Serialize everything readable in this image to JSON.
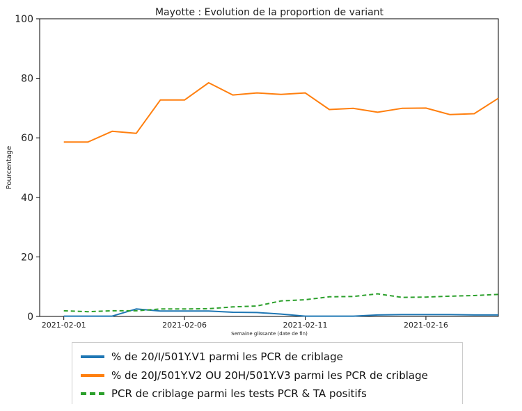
{
  "chart_data": {
    "type": "line",
    "title": "Mayotte : Evolution de la proportion de variant",
    "xlabel": "Semaine glissante (date de fin)",
    "ylabel": "Pourcentage",
    "ylim": [
      0,
      100
    ],
    "xlim": [
      "2021-01-31",
      "2021-02-19"
    ],
    "x_ticks": [
      "2021-02-01",
      "2021-02-06",
      "2021-02-11",
      "2021-02-16"
    ],
    "y_ticks": [
      0,
      20,
      40,
      60,
      80,
      100
    ],
    "grid": false,
    "legend_placement": "bottom",
    "x": [
      "2021-02-01",
      "2021-02-02",
      "2021-02-03",
      "2021-02-04",
      "2021-02-05",
      "2021-02-06",
      "2021-02-07",
      "2021-02-08",
      "2021-02-09",
      "2021-02-10",
      "2021-02-11",
      "2021-02-12",
      "2021-02-13",
      "2021-02-14",
      "2021-02-15",
      "2021-02-16",
      "2021-02-17",
      "2021-02-18",
      "2021-02-19"
    ],
    "series": [
      {
        "name": "% de 20/I/501Y.V1 parmi les PCR de criblage",
        "color": "#1f77b4",
        "style": "solid",
        "values": [
          0.1,
          0.1,
          0.1,
          2.5,
          1.8,
          1.8,
          1.8,
          1.4,
          1.3,
          0.8,
          0.1,
          0.1,
          0.1,
          0.5,
          0.6,
          0.6,
          0.6,
          0.5,
          0.5
        ]
      },
      {
        "name": "% de 20J/501Y.V2 OU 20H/501Y.V3 parmi les PCR de criblage",
        "color": "#ff7f0e",
        "style": "solid",
        "values": [
          58.6,
          58.6,
          62.2,
          61.5,
          72.7,
          72.7,
          78.5,
          74.4,
          75.1,
          74.6,
          75.1,
          69.5,
          69.9,
          68.6,
          69.9,
          70.0,
          67.8,
          68.1,
          73.3
        ]
      },
      {
        "name": "PCR de criblage parmi les tests PCR & TA positifs",
        "color": "#2ca02c",
        "style": "dashed",
        "values": [
          1.9,
          1.6,
          1.9,
          1.9,
          2.5,
          2.5,
          2.6,
          3.2,
          3.5,
          5.2,
          5.6,
          6.6,
          6.7,
          7.6,
          6.4,
          6.5,
          6.8,
          7.0,
          7.4
        ]
      }
    ]
  }
}
